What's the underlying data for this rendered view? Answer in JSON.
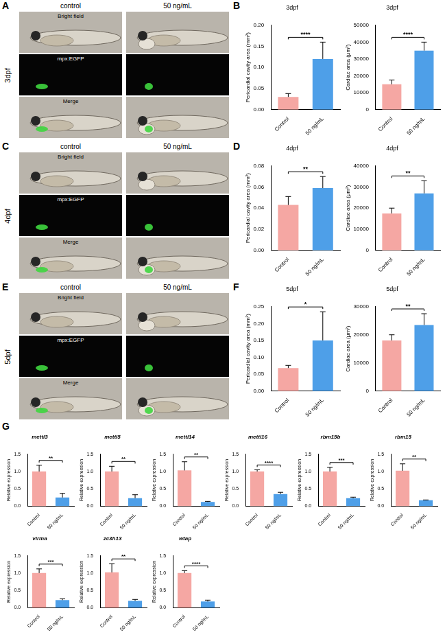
{
  "image_panels": [
    {
      "panel_label": "A",
      "stage": "3dpf",
      "columns": [
        "control",
        "50 ng/mL"
      ],
      "rows": [
        "Bright field",
        "mpx:EGFP",
        "Merge"
      ]
    },
    {
      "panel_label": "C",
      "stage": "4dpf",
      "columns": [
        "control",
        "50 ng/mL"
      ],
      "rows": [
        "Bright field",
        "mpx:EGFP",
        "Merge"
      ]
    },
    {
      "panel_label": "E",
      "stage": "5dpf",
      "columns": [
        "control",
        "50 ng/mL"
      ],
      "rows": [
        "Bright field",
        "mpx:EGFP",
        "Merge"
      ]
    }
  ],
  "chart_data": [
    {
      "panel_label": "B",
      "type": "bar",
      "title": "3dpf",
      "y_label": "Pericardial cavity area (mm²)",
      "categories": [
        "Control",
        "50 ng/mL"
      ],
      "values": [
        0.03,
        0.12
      ],
      "errors": [
        0.008,
        0.04
      ],
      "colors": [
        "#f5a7a3",
        "#4e9fe8"
      ],
      "ylim": [
        0,
        0.2
      ],
      "yticks": [
        {
          "value": 0,
          "label": "0.00"
        },
        {
          "value": 0.05,
          "label": "0.05"
        },
        {
          "value": 0.1,
          "label": "0.10"
        },
        {
          "value": 0.15,
          "label": "0.15"
        },
        {
          "value": 0.2,
          "label": "0.20"
        }
      ],
      "significance": "****",
      "grid": false
    },
    {
      "type": "bar",
      "title": "3dpf",
      "y_label": "Cardiac area (μm²)",
      "categories": [
        "Control",
        "50 ng/mL"
      ],
      "values": [
        15000,
        35000
      ],
      "errors": [
        2500,
        5000
      ],
      "colors": [
        "#f5a7a3",
        "#4e9fe8"
      ],
      "ylim": [
        0,
        50000
      ],
      "yticks": [
        0,
        10000,
        20000,
        30000,
        40000,
        50000
      ],
      "significance": "****",
      "grid": false
    },
    {
      "panel_label": "D",
      "type": "bar",
      "title": "4dpf",
      "y_label": "Pericardial cavity area (mm²)",
      "categories": [
        "Control",
        "50 ng/mL"
      ],
      "values": [
        0.043,
        0.059
      ],
      "errors": [
        0.008,
        0.011
      ],
      "colors": [
        "#f5a7a3",
        "#4e9fe8"
      ],
      "ylim": [
        0,
        0.08
      ],
      "yticks": [
        {
          "value": 0,
          "label": "0.00"
        },
        {
          "value": 0.02,
          "label": "0.02"
        },
        {
          "value": 0.04,
          "label": "0.04"
        },
        {
          "value": 0.06,
          "label": "0.06"
        },
        {
          "value": 0.08,
          "label": "0.08"
        }
      ],
      "significance": "**",
      "grid": false
    },
    {
      "type": "bar",
      "title": "4dpf",
      "y_label": "Cardiac area (μm²)",
      "categories": [
        "Control",
        "50 ng/mL"
      ],
      "values": [
        17500,
        27000
      ],
      "errors": [
        2500,
        6000
      ],
      "colors": [
        "#f5a7a3",
        "#4e9fe8"
      ],
      "ylim": [
        0,
        40000
      ],
      "yticks": [
        0,
        10000,
        20000,
        30000,
        40000
      ],
      "significance": "**",
      "grid": false
    },
    {
      "panel_label": "F",
      "type": "bar",
      "title": "5dpf",
      "y_label": "Pericardial cavity area (mm²)",
      "categories": [
        "Control",
        "50 ng/mL"
      ],
      "values": [
        0.068,
        0.15
      ],
      "errors": [
        0.008,
        0.085
      ],
      "colors": [
        "#f5a7a3",
        "#4e9fe8"
      ],
      "ylim": [
        0,
        0.25
      ],
      "yticks": [
        {
          "value": 0,
          "label": "0.00"
        },
        {
          "value": 0.05,
          "label": "0.05"
        },
        {
          "value": 0.1,
          "label": "0.10"
        },
        {
          "value": 0.15,
          "label": "0.15"
        },
        {
          "value": 0.2,
          "label": "0.20"
        },
        {
          "value": 0.25,
          "label": "0.25"
        }
      ],
      "significance": "*",
      "grid": false
    },
    {
      "type": "bar",
      "title": "5dpf",
      "y_label": "Cardiac area (μm²)",
      "categories": [
        "Control",
        "50 ng/mL"
      ],
      "values": [
        18000,
        23500
      ],
      "errors": [
        2000,
        4000
      ],
      "colors": [
        "#f5a7a3",
        "#4e9fe8"
      ],
      "ylim": [
        0,
        30000
      ],
      "yticks": [
        0,
        10000,
        20000,
        30000
      ],
      "significance": "**",
      "grid": false
    },
    {
      "panel_label": "G",
      "type": "bar",
      "title": "mettl3",
      "y_label": "Relative expression",
      "categories": [
        "Control",
        "50 ng/mL"
      ],
      "values": [
        1.0,
        0.25
      ],
      "errors": [
        0.18,
        0.12
      ],
      "colors": [
        "#f5a7a3",
        "#4e9fe8"
      ],
      "ylim": [
        0,
        1.5
      ],
      "yticks": [
        {
          "value": 0,
          "label": "0.0"
        },
        {
          "value": 0.5,
          "label": "0.5"
        },
        {
          "value": 1,
          "label": "1.0"
        },
        {
          "value": 1.5,
          "label": "1.5"
        }
      ],
      "significance": "**",
      "grid": false
    },
    {
      "type": "bar",
      "title": "mettl5",
      "y_label": "Relative expression",
      "categories": [
        "Control",
        "50 ng/mL"
      ],
      "values": [
        1.0,
        0.23
      ],
      "errors": [
        0.15,
        0.1
      ],
      "colors": [
        "#f5a7a3",
        "#4e9fe8"
      ],
      "ylim": [
        0,
        1.5
      ],
      "yticks": [
        {
          "value": 0,
          "label": "0.0"
        },
        {
          "value": 0.5,
          "label": "0.5"
        },
        {
          "value": 1,
          "label": "1.0"
        },
        {
          "value": 1.5,
          "label": "1.5"
        }
      ],
      "significance": "**",
      "grid": false
    },
    {
      "type": "bar",
      "title": "mettl14",
      "y_label": "Relative expression",
      "categories": [
        "Control",
        "50 ng/mL"
      ],
      "values": [
        1.03,
        0.12
      ],
      "errors": [
        0.25,
        0.02
      ],
      "colors": [
        "#f5a7a3",
        "#4e9fe8"
      ],
      "ylim": [
        0,
        1.5
      ],
      "yticks": [
        {
          "value": 0,
          "label": "0.0"
        },
        {
          "value": 0.5,
          "label": "0.5"
        },
        {
          "value": 1,
          "label": "1.0"
        },
        {
          "value": 1.5,
          "label": "1.5"
        }
      ],
      "significance": "**",
      "grid": false
    },
    {
      "type": "bar",
      "title": "mettl16",
      "y_label": "Relative expression",
      "categories": [
        "Control",
        "50 ng/mL"
      ],
      "values": [
        1.0,
        0.35
      ],
      "errors": [
        0.05,
        0.05
      ],
      "colors": [
        "#f5a7a3",
        "#4e9fe8"
      ],
      "ylim": [
        0,
        1.5
      ],
      "yticks": [
        {
          "value": 0,
          "label": "0.0"
        },
        {
          "value": 0.5,
          "label": "0.5"
        },
        {
          "value": 1,
          "label": "1.0"
        },
        {
          "value": 1.5,
          "label": "1.5"
        }
      ],
      "significance": "****",
      "grid": false
    },
    {
      "type": "bar",
      "title": "rbm15b",
      "y_label": "Relative expression",
      "categories": [
        "Control",
        "50 ng/mL"
      ],
      "values": [
        1.0,
        0.23
      ],
      "errors": [
        0.12,
        0.03
      ],
      "colors": [
        "#f5a7a3",
        "#4e9fe8"
      ],
      "ylim": [
        0,
        1.5
      ],
      "yticks": [
        {
          "value": 0,
          "label": "0.0"
        },
        {
          "value": 0.5,
          "label": "0.5"
        },
        {
          "value": 1,
          "label": "1.0"
        },
        {
          "value": 1.5,
          "label": "1.5"
        }
      ],
      "significance": "***",
      "grid": false
    },
    {
      "type": "bar",
      "title": "rbm15",
      "y_label": "Relative expression",
      "categories": [
        "Control",
        "50 ng/mL"
      ],
      "values": [
        1.02,
        0.17
      ],
      "errors": [
        0.2,
        0.01
      ],
      "colors": [
        "#f5a7a3",
        "#4e9fe8"
      ],
      "ylim": [
        0,
        1.5
      ],
      "yticks": [
        {
          "value": 0,
          "label": "0.0"
        },
        {
          "value": 0.5,
          "label": "0.5"
        },
        {
          "value": 1,
          "label": "1.0"
        },
        {
          "value": 1.5,
          "label": "1.5"
        }
      ],
      "significance": "**",
      "grid": false
    },
    {
      "type": "bar",
      "title": "virma",
      "y_label": "Relative expression",
      "categories": [
        "Control",
        "50 ng/mL"
      ],
      "values": [
        1.0,
        0.22
      ],
      "errors": [
        0.12,
        0.04
      ],
      "colors": [
        "#f5a7a3",
        "#4e9fe8"
      ],
      "ylim": [
        0,
        1.5
      ],
      "yticks": [
        {
          "value": 0,
          "label": "0.0"
        },
        {
          "value": 0.5,
          "label": "0.5"
        },
        {
          "value": 1,
          "label": "1.0"
        },
        {
          "value": 1.5,
          "label": "1.5"
        }
      ],
      "significance": "***",
      "grid": false
    },
    {
      "type": "bar",
      "title": "zc3h13",
      "y_label": "Relative expression",
      "categories": [
        "Control",
        "50 ng/mL"
      ],
      "values": [
        1.02,
        0.2
      ],
      "errors": [
        0.25,
        0.04
      ],
      "colors": [
        "#f5a7a3",
        "#4e9fe8"
      ],
      "ylim": [
        0,
        1.5
      ],
      "yticks": [
        {
          "value": 0,
          "label": "0.0"
        },
        {
          "value": 0.5,
          "label": "0.5"
        },
        {
          "value": 1,
          "label": "1.0"
        },
        {
          "value": 1.5,
          "label": "1.5"
        }
      ],
      "significance": "**",
      "grid": false
    },
    {
      "type": "bar",
      "title": "wtap",
      "y_label": "Relative expression",
      "categories": [
        "Control",
        "50 ng/mL"
      ],
      "values": [
        1.0,
        0.18
      ],
      "errors": [
        0.07,
        0.04
      ],
      "colors": [
        "#f5a7a3",
        "#4e9fe8"
      ],
      "ylim": [
        0,
        1.5
      ],
      "yticks": [
        {
          "value": 0,
          "label": "0.0"
        },
        {
          "value": 0.5,
          "label": "0.5"
        },
        {
          "value": 1,
          "label": "1.0"
        },
        {
          "value": 1.5,
          "label": "1.5"
        }
      ],
      "significance": "****",
      "grid": false
    }
  ]
}
